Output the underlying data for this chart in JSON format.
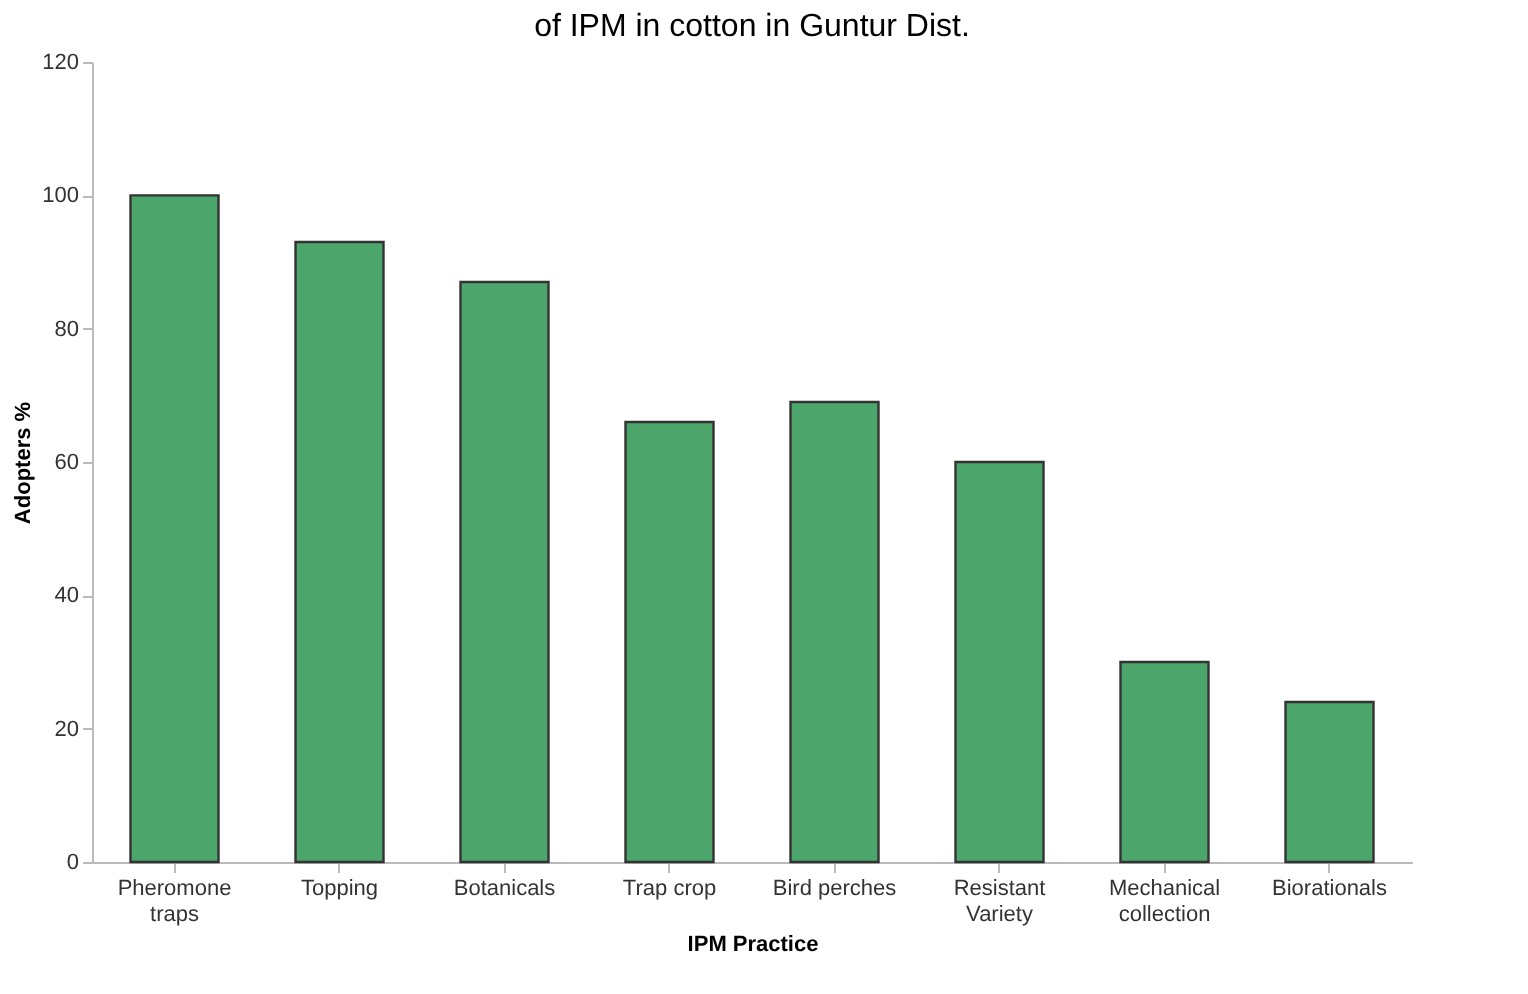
{
  "chart_data": {
    "type": "bar",
    "title": "of IPM in cotton in Guntur Dist.",
    "xlabel": "IPM Practice",
    "ylabel": "Adopters %",
    "categories": [
      "Pheromone traps",
      "Topping",
      "Botanicals",
      "Trap crop",
      "Bird perches",
      "Resistant Variety",
      "Mechanical collection",
      "Biorationals"
    ],
    "values": [
      100,
      93,
      87,
      66,
      69,
      60,
      30,
      24
    ],
    "color": "#4ca66b",
    "ylim": [
      0,
      120
    ],
    "yticks": [
      0,
      20,
      40,
      60,
      80,
      100,
      120
    ],
    "grid": false
  }
}
